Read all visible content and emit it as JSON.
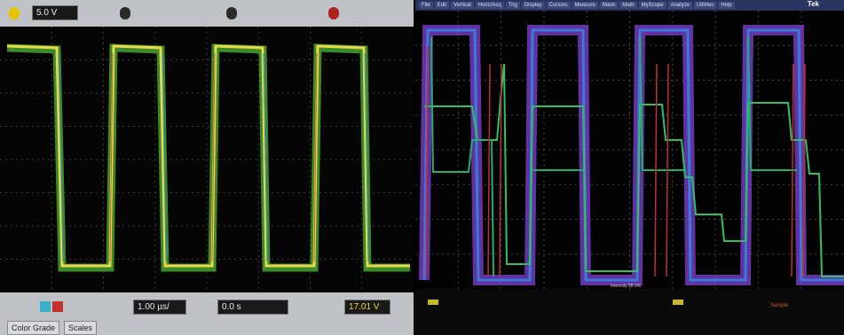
{
  "left_scope": {
    "channel_scale": "5.0 V",
    "timebase": "1.00 µs/",
    "delay": "0.0 s",
    "trigger_level": "17.01 V",
    "buttons": [
      "Color Grade",
      "Scales"
    ]
  },
  "right_scope": {
    "menu": [
      "File",
      "Edit",
      "Vertical",
      "Horiz/Acq",
      "Trig",
      "Display",
      "Cursors",
      "Measure",
      "Mask",
      "Math",
      "MyScope",
      "Analyze",
      "Utilities",
      "Help"
    ],
    "brand": "Tek",
    "intensity": "Intensity 88.0%",
    "acquisition": "Sample"
  }
}
